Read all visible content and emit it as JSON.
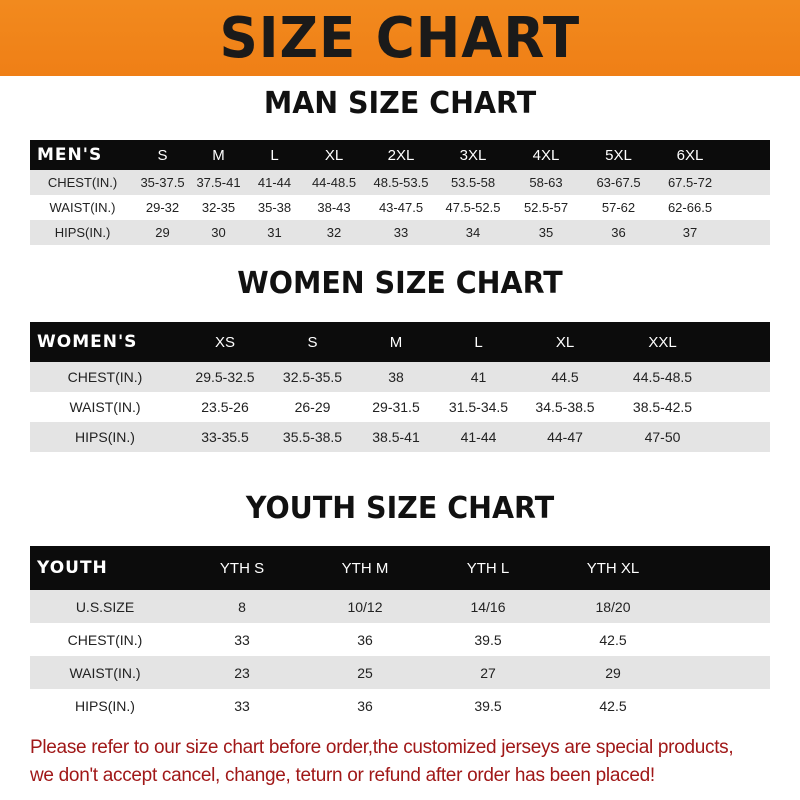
{
  "banner_title": "SIZE CHART",
  "colors": {
    "banner": "#f08a1c",
    "header_row": "#0c0c0c",
    "note_text": "#a01818"
  },
  "men": {
    "title": "MAN SIZE CHART",
    "header": [
      "MEN'S",
      "S",
      "M",
      "L",
      "XL",
      "2XL",
      "3XL",
      "4XL",
      "5XL",
      "6XL"
    ],
    "rows": [
      [
        "CHEST(IN.)",
        "35-37.5",
        "37.5-41",
        "41-44",
        "44-48.5",
        "48.5-53.5",
        "53.5-58",
        "58-63",
        "63-67.5",
        "67.5-72"
      ],
      [
        "WAIST(IN.)",
        "29-32",
        "32-35",
        "35-38",
        "38-43",
        "43-47.5",
        "47.5-52.5",
        "52.5-57",
        "57-62",
        "62-66.5"
      ],
      [
        "HIPS(IN.)",
        "29",
        "30",
        "31",
        "32",
        "33",
        "34",
        "35",
        "36",
        "37"
      ]
    ]
  },
  "women": {
    "title": "WOMEN SIZE CHART",
    "header": [
      "WOMEN'S",
      "XS",
      "S",
      "M",
      "L",
      "XL",
      "XXL"
    ],
    "rows": [
      [
        "CHEST(IN.)",
        "29.5-32.5",
        "32.5-35.5",
        "38",
        "41",
        "44.5",
        "44.5-48.5"
      ],
      [
        "WAIST(IN.)",
        "23.5-26",
        "26-29",
        "29-31.5",
        "31.5-34.5",
        "34.5-38.5",
        "38.5-42.5"
      ],
      [
        "HIPS(IN.)",
        "33-35.5",
        "35.5-38.5",
        "38.5-41",
        "41-44",
        "44-47",
        "47-50"
      ]
    ]
  },
  "youth": {
    "title": "YOUTH SIZE CHART",
    "header": [
      "YOUTH",
      "YTH S",
      "YTH M",
      "YTH L",
      "YTH XL"
    ],
    "rows": [
      [
        "U.S.SIZE",
        "8",
        "10/12",
        "14/16",
        "18/20"
      ],
      [
        "CHEST(IN.)",
        "33",
        "36",
        "39.5",
        "42.5"
      ],
      [
        "WAIST(IN.)",
        "23",
        "25",
        "27",
        "29"
      ],
      [
        "HIPS(IN.)",
        "33",
        "36",
        "39.5",
        "42.5"
      ]
    ]
  },
  "note": {
    "line1": "Please refer to our size chart before order,the customized jerseys are special products,",
    "line2": "we don't accept cancel, change, teturn or refund after order has been placed!"
  }
}
